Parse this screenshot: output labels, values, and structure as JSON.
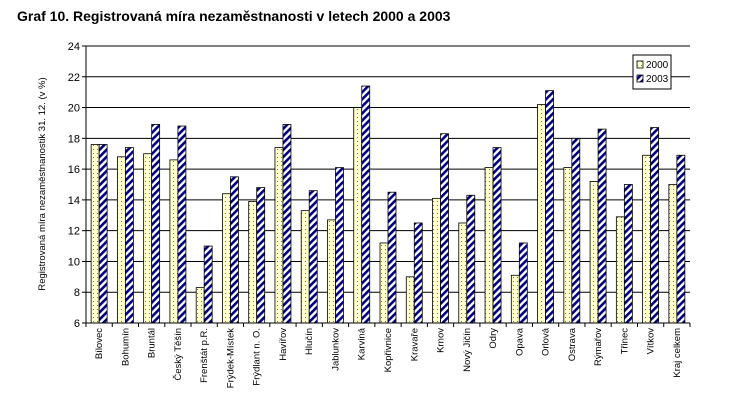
{
  "chart_data": {
    "type": "bar",
    "title": "Graf 10. Registrovaná míra nezaměstnanosti v letech 2000  a 2003",
    "xlabel": "",
    "ylabel": "Registrovaná míra nezaměstnanostik 31. 12. (v %)",
    "ylim": [
      6,
      24
    ],
    "yticks": [
      6,
      8,
      10,
      12,
      14,
      16,
      18,
      20,
      22,
      24
    ],
    "grid": true,
    "legend_position": "top-right",
    "categories": [
      "Bílovec",
      "Bohumín",
      "Bruntál",
      "Český Těšín",
      "Frenštát p.R.",
      "Frýdek-Místek",
      "Frýdlant n. O.",
      "Havířov",
      "Hlučín",
      "Jablunkov",
      "Karviná",
      "Kopřivnice",
      "Kravaře",
      "Krnov",
      "Nový Jičín",
      "Odry",
      "Opava",
      "Orlová",
      "Ostrava",
      "Rýmařov",
      "Třinec",
      "Vítkov",
      "Kraj celkem"
    ],
    "series": [
      {
        "name": "2000",
        "color": "#ffffcc",
        "pattern": "dotted",
        "values": [
          17.6,
          16.8,
          17.0,
          16.6,
          8.3,
          14.4,
          13.9,
          17.4,
          13.3,
          12.7,
          20.0,
          11.2,
          9.0,
          14.1,
          12.5,
          16.1,
          9.1,
          20.2,
          16.1,
          15.2,
          12.9,
          16.9,
          15.0
        ]
      },
      {
        "name": "2003",
        "color": "#000080",
        "pattern": "diagonal-stripes",
        "values": [
          17.6,
          17.4,
          18.9,
          18.8,
          11.0,
          15.5,
          14.8,
          18.9,
          14.6,
          16.1,
          21.4,
          14.5,
          12.5,
          18.3,
          14.3,
          17.4,
          11.2,
          21.1,
          18.0,
          18.6,
          15.0,
          18.7,
          16.9
        ]
      }
    ]
  }
}
